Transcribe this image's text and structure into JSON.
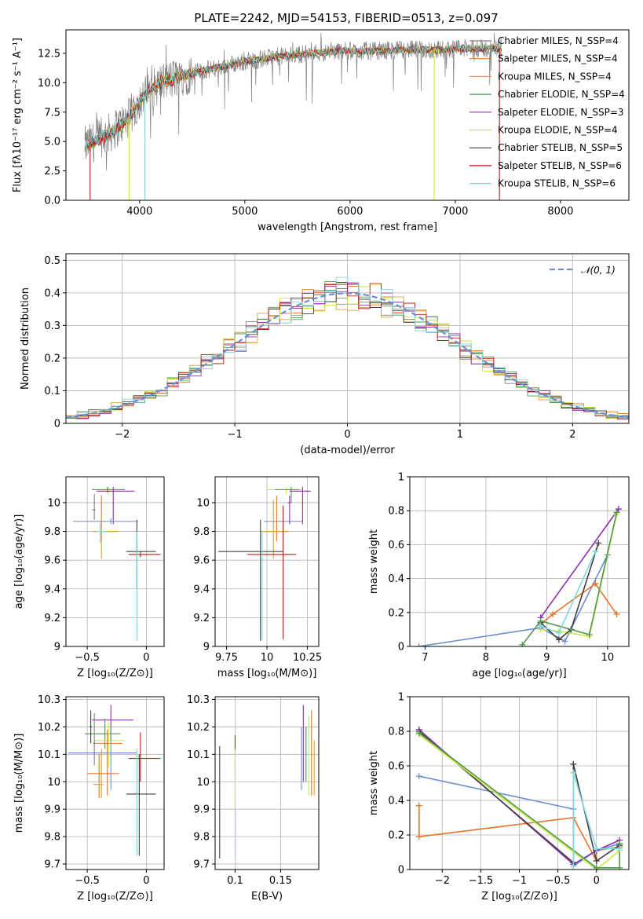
{
  "figure": {
    "title": "PLATE=2242, MJD=54153, FIBERID=0513, z=0.097"
  },
  "colors": {
    "Chabrier MILES": "#808080",
    "Salpeter MILES": "#e6762b",
    "Kroupa MILES": "#d8a03a",
    "Chabrier ELODIE": "#4f9a4f",
    "Salpeter ELODIE": "#9030b0",
    "Kroupa ELODIE": "#cce840",
    "Chabrier STELIB": "#404040",
    "Salpeter STELIB": "#c01818",
    "Kroupa STELIB": "#80d8dc",
    "gaussian": "#6a8fd6",
    "blue": "#6a8fd6"
  },
  "chart_data": [
    {
      "id": "spectrum",
      "type": "line",
      "title": "PLATE=2242, MJD=54153, FIBERID=0513, z=0.097",
      "xlabel": "wavelength [Angstrom, rest frame]",
      "ylabel": "Flux [fλ10⁻¹⁷ erg cm⁻² s⁻¹ A⁻¹]",
      "xlim": [
        3300,
        8650
      ],
      "ylim": [
        0,
        14.5
      ],
      "xticks": [
        4000,
        5000,
        6000,
        7000,
        8000
      ],
      "yticks": [
        0.0,
        2.5,
        5.0,
        7.5,
        10.0,
        12.5
      ],
      "grid": false,
      "legend_placement": "right",
      "x_start": 3480,
      "x_end": 7440,
      "legend": [
        "Chabrier MILES, N_SSP=4",
        "Salpeter MILES, N_SSP=4",
        "Kroupa MILES, N_SSP=4",
        "Chabrier ELODIE, N_SSP=4",
        "Salpeter ELODIE, N_SSP=3",
        "Kroupa ELODIE, N_SSP=4",
        "Chabrier STELIB, N_SSP=5",
        "Salpeter STELIB, N_SSP=6",
        "Kroupa STELIB, N_SSP=6"
      ],
      "continuum": [
        [
          3480,
          4.6
        ],
        [
          3700,
          5.6
        ],
        [
          3900,
          7.0
        ],
        [
          4000,
          8.5
        ],
        [
          4200,
          10.0
        ],
        [
          4500,
          10.8
        ],
        [
          4800,
          11.4
        ],
        [
          5000,
          11.8
        ],
        [
          5300,
          12.2
        ],
        [
          5600,
          12.5
        ],
        [
          5900,
          12.7
        ],
        [
          6200,
          12.7
        ],
        [
          6500,
          12.8
        ],
        [
          6800,
          12.8
        ],
        [
          7100,
          12.9
        ],
        [
          7440,
          12.9
        ]
      ],
      "drops": [
        {
          "model": "Salpeter STELIB",
          "x": 3530
        },
        {
          "model": "Kroupa ELODIE",
          "x": 3900
        },
        {
          "model": "Kroupa STELIB",
          "x": 4050
        },
        {
          "model": "Kroupa ELODIE",
          "x": 6800
        },
        {
          "model": "Salpeter STELIB",
          "x": 7420
        }
      ]
    },
    {
      "id": "residuals",
      "type": "histogram",
      "xlabel": "(data-model)/error",
      "ylabel": "Normed distribution",
      "xlim": [
        -2.5,
        2.5
      ],
      "ylim": [
        0,
        0.52
      ],
      "xticks": [
        -2,
        -1,
        0,
        1,
        2
      ],
      "yticks": [
        0.0,
        0.1,
        0.2,
        0.3,
        0.4,
        0.5
      ],
      "grid": true,
      "bin_width": 0.1,
      "legend": [
        "𝒩(0, 1)"
      ],
      "legend_placement": "top-right",
      "gaussian": {
        "mean": 0,
        "sigma": 1
      }
    },
    {
      "id": "age_vs_Z",
      "type": "errorbar",
      "xlabel": "Z [log₁₀(Z/Z⊙)]",
      "ylabel": "age  [log₁₀(age/yr)]",
      "xlim": [
        -0.68,
        0.15
      ],
      "ylim": [
        9.0,
        10.18
      ],
      "xticks": [
        -0.5,
        0.0
      ],
      "yticks": [
        9.0,
        9.2,
        9.4,
        9.6,
        9.8,
        10.0
      ],
      "grid": true,
      "points": [
        {
          "model": "Kroupa ELODIE",
          "x": -0.32,
          "y": 10.09,
          "xlo": -0.45,
          "xhi": -0.18,
          "ylo": 10.06,
          "yhi": 10.11
        },
        {
          "model": "Chabrier ELODIE",
          "x": -0.33,
          "y": 10.09,
          "xlo": -0.46,
          "xhi": -0.18,
          "ylo": 10.07,
          "yhi": 10.11
        },
        {
          "model": "Salpeter ELODIE",
          "x": -0.28,
          "y": 10.08,
          "xlo": -0.42,
          "xhi": -0.1,
          "ylo": 9.85,
          "yhi": 10.11
        },
        {
          "model": "Chabrier MILES",
          "x": -0.44,
          "y": 9.95,
          "xlo": -0.46,
          "xhi": -0.43,
          "ylo": 9.88,
          "yhi": 10.06
        },
        {
          "model": "Salpeter MILES",
          "x": -0.38,
          "y": 9.8,
          "xlo": -0.45,
          "xhi": -0.24,
          "ylo": 9.73,
          "yhi": 10.05
        },
        {
          "model": "Kroupa MILES",
          "x": -0.38,
          "y": 9.8,
          "xlo": -0.45,
          "xhi": -0.25,
          "ylo": 9.61,
          "yhi": 10.02
        },
        {
          "model": "Kroupa STELIB",
          "x": -0.39,
          "y": 9.8,
          "xlo": -0.43,
          "xhi": -0.34,
          "ylo": 9.72,
          "yhi": 9.86
        },
        {
          "model": "Chabrier STELIB",
          "x": -0.08,
          "y": 9.66,
          "xlo": -0.17,
          "xhi": 0.08,
          "ylo": 9.4,
          "yhi": 9.88
        },
        {
          "model": "Salpeter STELIB",
          "x": -0.05,
          "y": 9.64,
          "xlo": -0.15,
          "xhi": 0.12,
          "ylo": 9.62,
          "yhi": 9.66
        },
        {
          "model": "blue",
          "x": -0.3,
          "y": 9.87,
          "xlo": -0.62,
          "xhi": -0.07,
          "ylo": 9.85,
          "yhi": 9.89
        },
        {
          "model": "Kroupa STELIB",
          "x": -0.08,
          "y": 9.6,
          "xlo": -0.09,
          "xhi": -0.07,
          "ylo": 9.04,
          "yhi": 9.8
        }
      ]
    },
    {
      "id": "age_vs_mass",
      "type": "errorbar",
      "xlabel": "mass [log₁₀(M/M⊙)]",
      "ylabel": "",
      "xlim": [
        9.68,
        10.32
      ],
      "ylim": [
        9.0,
        10.18
      ],
      "xticks": [
        9.75,
        10.0,
        10.25
      ],
      "yticks": [
        9.0,
        9.2,
        9.4,
        9.6,
        9.8,
        10.0
      ],
      "grid": true,
      "points": [
        {
          "model": "Kroupa ELODIE",
          "x": 10.12,
          "y": 10.09,
          "xlo": 10.0,
          "xhi": 10.22,
          "ylo": 10.06,
          "yhi": 10.11
        },
        {
          "model": "Salpeter ELODIE",
          "x": 10.22,
          "y": 10.08,
          "xlo": 10.14,
          "xhi": 10.27,
          "ylo": 9.85,
          "yhi": 10.11
        },
        {
          "model": "Chabrier ELODIE",
          "x": 10.15,
          "y": 10.09,
          "xlo": 10.05,
          "xhi": 10.2,
          "ylo": 10.0,
          "yhi": 10.11
        },
        {
          "model": "blue",
          "x": 10.1,
          "y": 9.87,
          "xlo": 9.98,
          "xhi": 10.22,
          "ylo": 9.85,
          "yhi": 9.89
        },
        {
          "model": "Salpeter MILES",
          "x": 10.06,
          "y": 9.8,
          "xlo": 9.98,
          "xhi": 10.13,
          "ylo": 9.73,
          "yhi": 10.05
        },
        {
          "model": "Kroupa MILES",
          "x": 10.04,
          "y": 9.8,
          "xlo": 9.96,
          "xhi": 10.12,
          "ylo": 9.61,
          "yhi": 10.02
        },
        {
          "model": "Chabrier STELIB",
          "x": 9.96,
          "y": 9.66,
          "xlo": 9.7,
          "xhi": 10.1,
          "ylo": 9.04,
          "yhi": 9.88
        },
        {
          "model": "Salpeter STELIB",
          "x": 10.1,
          "y": 9.64,
          "xlo": 9.88,
          "xhi": 10.18,
          "ylo": 9.05,
          "yhi": 9.98
        },
        {
          "model": "Kroupa STELIB",
          "x": 9.97,
          "y": 9.6,
          "xlo": 9.96,
          "xhi": 9.98,
          "ylo": 9.04,
          "yhi": 9.8
        },
        {
          "model": "Salpeter ELODIE",
          "x": 10.14,
          "y": 10.0,
          "xlo": 10.13,
          "xhi": 10.15,
          "ylo": 9.85,
          "yhi": 10.05
        }
      ]
    },
    {
      "id": "weight_vs_age",
      "type": "line",
      "xlabel": "age  [log₁₀(age/yr)]",
      "ylabel": "mass weight",
      "xlim": [
        6.75,
        10.35
      ],
      "ylim": [
        0.0,
        1.0
      ],
      "xticks": [
        7,
        8,
        9,
        10
      ],
      "yticks": [
        0.0,
        0.2,
        0.4,
        0.6,
        0.8,
        1.0
      ],
      "grid": true,
      "series": [
        {
          "model": "blue",
          "points": [
            [
              6.9,
              0.0
            ],
            [
              8.9,
              0.11
            ],
            [
              9.3,
              0.03
            ],
            [
              10.0,
              0.54
            ]
          ]
        },
        {
          "model": "Salpeter MILES",
          "points": [
            [
              8.9,
              0.13
            ],
            [
              9.1,
              0.19
            ],
            [
              9.8,
              0.37
            ],
            [
              10.15,
              0.19
            ]
          ]
        },
        {
          "model": "Salpeter ELODIE",
          "points": [
            [
              8.9,
              0.17
            ],
            [
              10.18,
              0.81
            ]
          ]
        },
        {
          "model": "Kroupa ELODIE",
          "points": [
            [
              8.9,
              0.1
            ],
            [
              9.2,
              0.09
            ],
            [
              9.7,
              0.06
            ],
            [
              10.15,
              0.78
            ]
          ]
        },
        {
          "model": "Chabrier STELIB",
          "points": [
            [
              8.9,
              0.14
            ],
            [
              9.2,
              0.04
            ],
            [
              9.4,
              0.1
            ],
            [
              9.85,
              0.61
            ]
          ]
        },
        {
          "model": "Chabrier ELODIE",
          "points": [
            [
              8.6,
              0.01
            ],
            [
              8.9,
              0.15
            ],
            [
              9.7,
              0.07
            ],
            [
              10.15,
              0.79
            ]
          ]
        },
        {
          "model": "Kroupa STELIB",
          "points": [
            [
              8.9,
              0.12
            ],
            [
              9.2,
              0.08
            ],
            [
              9.8,
              0.56
            ]
          ]
        }
      ]
    },
    {
      "id": "mass_vs_Z",
      "type": "errorbar",
      "xlabel": "Z [log₁₀(Z/Z⊙)]",
      "ylabel": "mass [log₁₀(M/M⊙)]",
      "xlim": [
        -0.68,
        0.15
      ],
      "ylim": [
        9.68,
        10.31
      ],
      "xticks": [
        -0.5,
        0.0
      ],
      "yticks": [
        9.7,
        9.8,
        9.9,
        10.0,
        10.1,
        10.2,
        10.3
      ],
      "grid": true,
      "points": [
        {
          "model": "Salpeter ELODIE",
          "x": -0.3,
          "y": 10.225,
          "xlo": -0.46,
          "xhi": -0.11,
          "ylo": 10.15,
          "yhi": 10.28
        },
        {
          "model": "Chabrier ELODIE",
          "x": -0.35,
          "y": 10.175,
          "xlo": -0.52,
          "xhi": -0.22,
          "ylo": 10.12,
          "yhi": 10.23
        },
        {
          "model": "Kroupa ELODIE",
          "x": -0.32,
          "y": 10.15,
          "xlo": -0.44,
          "xhi": -0.18,
          "ylo": 10.05,
          "yhi": 10.22
        },
        {
          "model": "Salpeter MILES",
          "x": -0.33,
          "y": 10.14,
          "xlo": -0.45,
          "xhi": -0.2,
          "ylo": 9.95,
          "yhi": 10.19
        },
        {
          "model": "blue",
          "x": -0.3,
          "y": 10.105,
          "xlo": -0.66,
          "xhi": -0.08,
          "ylo": 9.97,
          "yhi": 10.2
        },
        {
          "model": "Salpeter STELIB",
          "x": -0.05,
          "y": 10.085,
          "xlo": -0.15,
          "xhi": 0.12,
          "ylo": 10.0,
          "yhi": 10.18
        },
        {
          "model": "Salpeter MILES",
          "x": -0.4,
          "y": 10.03,
          "xlo": -0.5,
          "xhi": -0.23,
          "ylo": 9.94,
          "yhi": 10.1
        },
        {
          "model": "Kroupa MILES",
          "x": -0.38,
          "y": 9.99,
          "xlo": -0.45,
          "xhi": -0.36,
          "ylo": 9.94,
          "yhi": 10.12
        },
        {
          "model": "Chabrier STELIB",
          "x": -0.06,
          "y": 9.955,
          "xlo": -0.17,
          "xhi": 0.08,
          "ylo": 9.73,
          "yhi": 10.1
        },
        {
          "model": "Kroupa STELIB",
          "x": -0.08,
          "y": 9.96,
          "xlo": -0.09,
          "xhi": -0.07,
          "ylo": 9.73,
          "yhi": 10.12
        },
        {
          "model": "Chabrier MILES",
          "x": -0.44,
          "y": 10.14,
          "xlo": -0.45,
          "xhi": -0.43,
          "ylo": 10.06,
          "yhi": 10.25
        },
        {
          "model": "Chabrier STELIB",
          "x": -0.47,
          "y": 10.2,
          "xlo": -0.48,
          "xhi": -0.46,
          "ylo": 10.14,
          "yhi": 10.26
        }
      ]
    },
    {
      "id": "mass_vs_ebv",
      "type": "errorbar",
      "xlabel": "E(B-V)",
      "ylabel": "",
      "xlim": [
        0.078,
        0.192
      ],
      "ylim": [
        9.68,
        10.31
      ],
      "xticks": [
        0.1,
        0.15
      ],
      "yticks": [
        9.7,
        9.8,
        9.9,
        10.0,
        10.1,
        10.2,
        10.3
      ],
      "grid": true,
      "points": [
        {
          "model": "Chabrier STELIB",
          "x": 0.083,
          "y": 10.0,
          "ylo": 9.72,
          "yhi": 10.13
        },
        {
          "model": "Salpeter STELIB",
          "x": 0.1,
          "y": 10.09,
          "ylo": 10.02,
          "yhi": 10.17
        },
        {
          "model": "Kroupa STELIB",
          "x": 0.1,
          "y": 9.95,
          "ylo": 9.73,
          "yhi": 10.12
        },
        {
          "model": "Kroupa ELODIE",
          "x": 0.1,
          "y": 10.05,
          "ylo": 9.9,
          "yhi": 10.11
        },
        {
          "model": "blue",
          "x": 0.173,
          "y": 10.08,
          "ylo": 9.97,
          "yhi": 10.2
        },
        {
          "model": "Salpeter ELODIE",
          "x": 0.175,
          "y": 10.2,
          "ylo": 10.0,
          "yhi": 10.28
        },
        {
          "model": "Chabrier ELODIE",
          "x": 0.178,
          "y": 10.1,
          "ylo": 10.0,
          "yhi": 10.2
        },
        {
          "model": "Kroupa ELODIE",
          "x": 0.181,
          "y": 10.12,
          "ylo": 9.95,
          "yhi": 10.24
        },
        {
          "model": "Salpeter MILES",
          "x": 0.184,
          "y": 10.14,
          "ylo": 9.95,
          "yhi": 10.26
        },
        {
          "model": "Kroupa MILES",
          "x": 0.187,
          "y": 10.03,
          "ylo": 9.95,
          "yhi": 10.15
        }
      ]
    },
    {
      "id": "weight_vs_Z",
      "type": "line",
      "xlabel": "Z [log₁₀(Z/Z⊙)]",
      "ylabel": "mass weight",
      "xlim": [
        -2.42,
        0.42
      ],
      "ylim": [
        0.0,
        1.0
      ],
      "xticks": [
        -2.0,
        -1.5,
        -1.0,
        -0.5,
        0.0
      ],
      "yticks": [
        0.0,
        0.2,
        0.4,
        0.6,
        0.8,
        1.0
      ],
      "grid": true,
      "series": [
        {
          "model": "Salpeter MILES",
          "points": [
            [
              -2.3,
              0.37
            ],
            [
              -2.3,
              0.19
            ],
            [
              -0.3,
              0.3
            ],
            [
              0.0,
              0.05
            ],
            [
              0.0,
              0.11
            ],
            [
              0.3,
              0.13
            ]
          ]
        },
        {
          "model": "blue",
          "points": [
            [
              -2.3,
              0.54
            ],
            [
              -0.3,
              0.35
            ],
            [
              -0.3,
              0.02
            ],
            [
              0.0,
              0.11
            ],
            [
              0.3,
              0.15
            ]
          ]
        },
        {
          "model": "Salpeter ELODIE",
          "points": [
            [
              -2.3,
              0.81
            ],
            [
              -0.3,
              0.03
            ],
            [
              0.0,
              0.11
            ],
            [
              0.3,
              0.17
            ]
          ]
        },
        {
          "model": "Chabrier STELIB",
          "points": [
            [
              -2.3,
              0.8
            ],
            [
              -0.3,
              0.04
            ],
            [
              -0.3,
              0.61
            ],
            [
              0.0,
              0.05
            ],
            [
              0.3,
              0.14
            ]
          ]
        },
        {
          "model": "Kroupa ELODIE",
          "points": [
            [
              -2.3,
              0.78
            ],
            [
              0.0,
              0.0
            ],
            [
              0.3,
              0.11
            ]
          ]
        },
        {
          "model": "Chabrier ELODIE",
          "points": [
            [
              -2.3,
              0.79
            ],
            [
              0.0,
              0.01
            ],
            [
              0.3,
              0.01
            ],
            [
              0.3,
              0.15
            ]
          ]
        },
        {
          "model": "Kroupa STELIB",
          "points": [
            [
              -0.3,
              0.02
            ],
            [
              -0.3,
              0.56
            ],
            [
              0.0,
              0.12
            ],
            [
              0.3,
              0.12
            ]
          ]
        }
      ]
    }
  ]
}
